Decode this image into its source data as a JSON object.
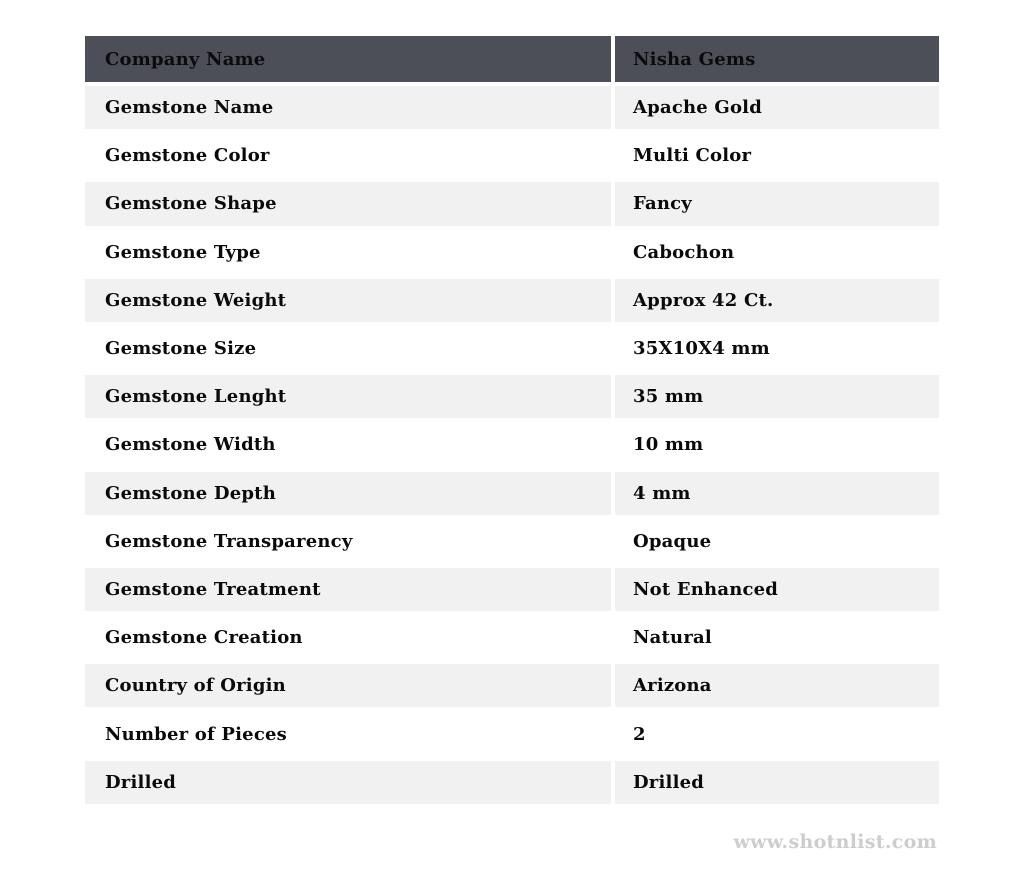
{
  "colors": {
    "header_bg": "#4c4e58",
    "alt_row_bg": "#f1f1f2",
    "row_bg": "#ffffff",
    "text": "#0a0a0c",
    "watermark": "#cdcdcd"
  },
  "table": {
    "header": {
      "label": "Company Name",
      "value": "Nisha Gems"
    },
    "rows": [
      {
        "label": "Gemstone Name",
        "value": "Apache Gold"
      },
      {
        "label": "Gemstone Color",
        "value": "Multi Color"
      },
      {
        "label": "Gemstone Shape",
        "value": "Fancy"
      },
      {
        "label": "Gemstone Type",
        "value": "Cabochon"
      },
      {
        "label": "Gemstone Weight",
        "value": "Approx 42 Ct."
      },
      {
        "label": "Gemstone Size",
        "value": "35X10X4 mm"
      },
      {
        "label": "Gemstone Lenght",
        "value": "35 mm"
      },
      {
        "label": "Gemstone Width",
        "value": "10 mm"
      },
      {
        "label": "Gemstone Depth",
        "value": "4 mm"
      },
      {
        "label": "Gemstone Transparency",
        "value": "Opaque"
      },
      {
        "label": "Gemstone Treatment",
        "value": "Not Enhanced"
      },
      {
        "label": "Gemstone Creation",
        "value": "Natural"
      },
      {
        "label": "Country of Origin",
        "value": "Arizona"
      },
      {
        "label": "Number of Pieces",
        "value": "2"
      },
      {
        "label": "Drilled",
        "value": "Drilled"
      }
    ]
  },
  "footer": {
    "watermark": "www.shotnlist.com"
  }
}
